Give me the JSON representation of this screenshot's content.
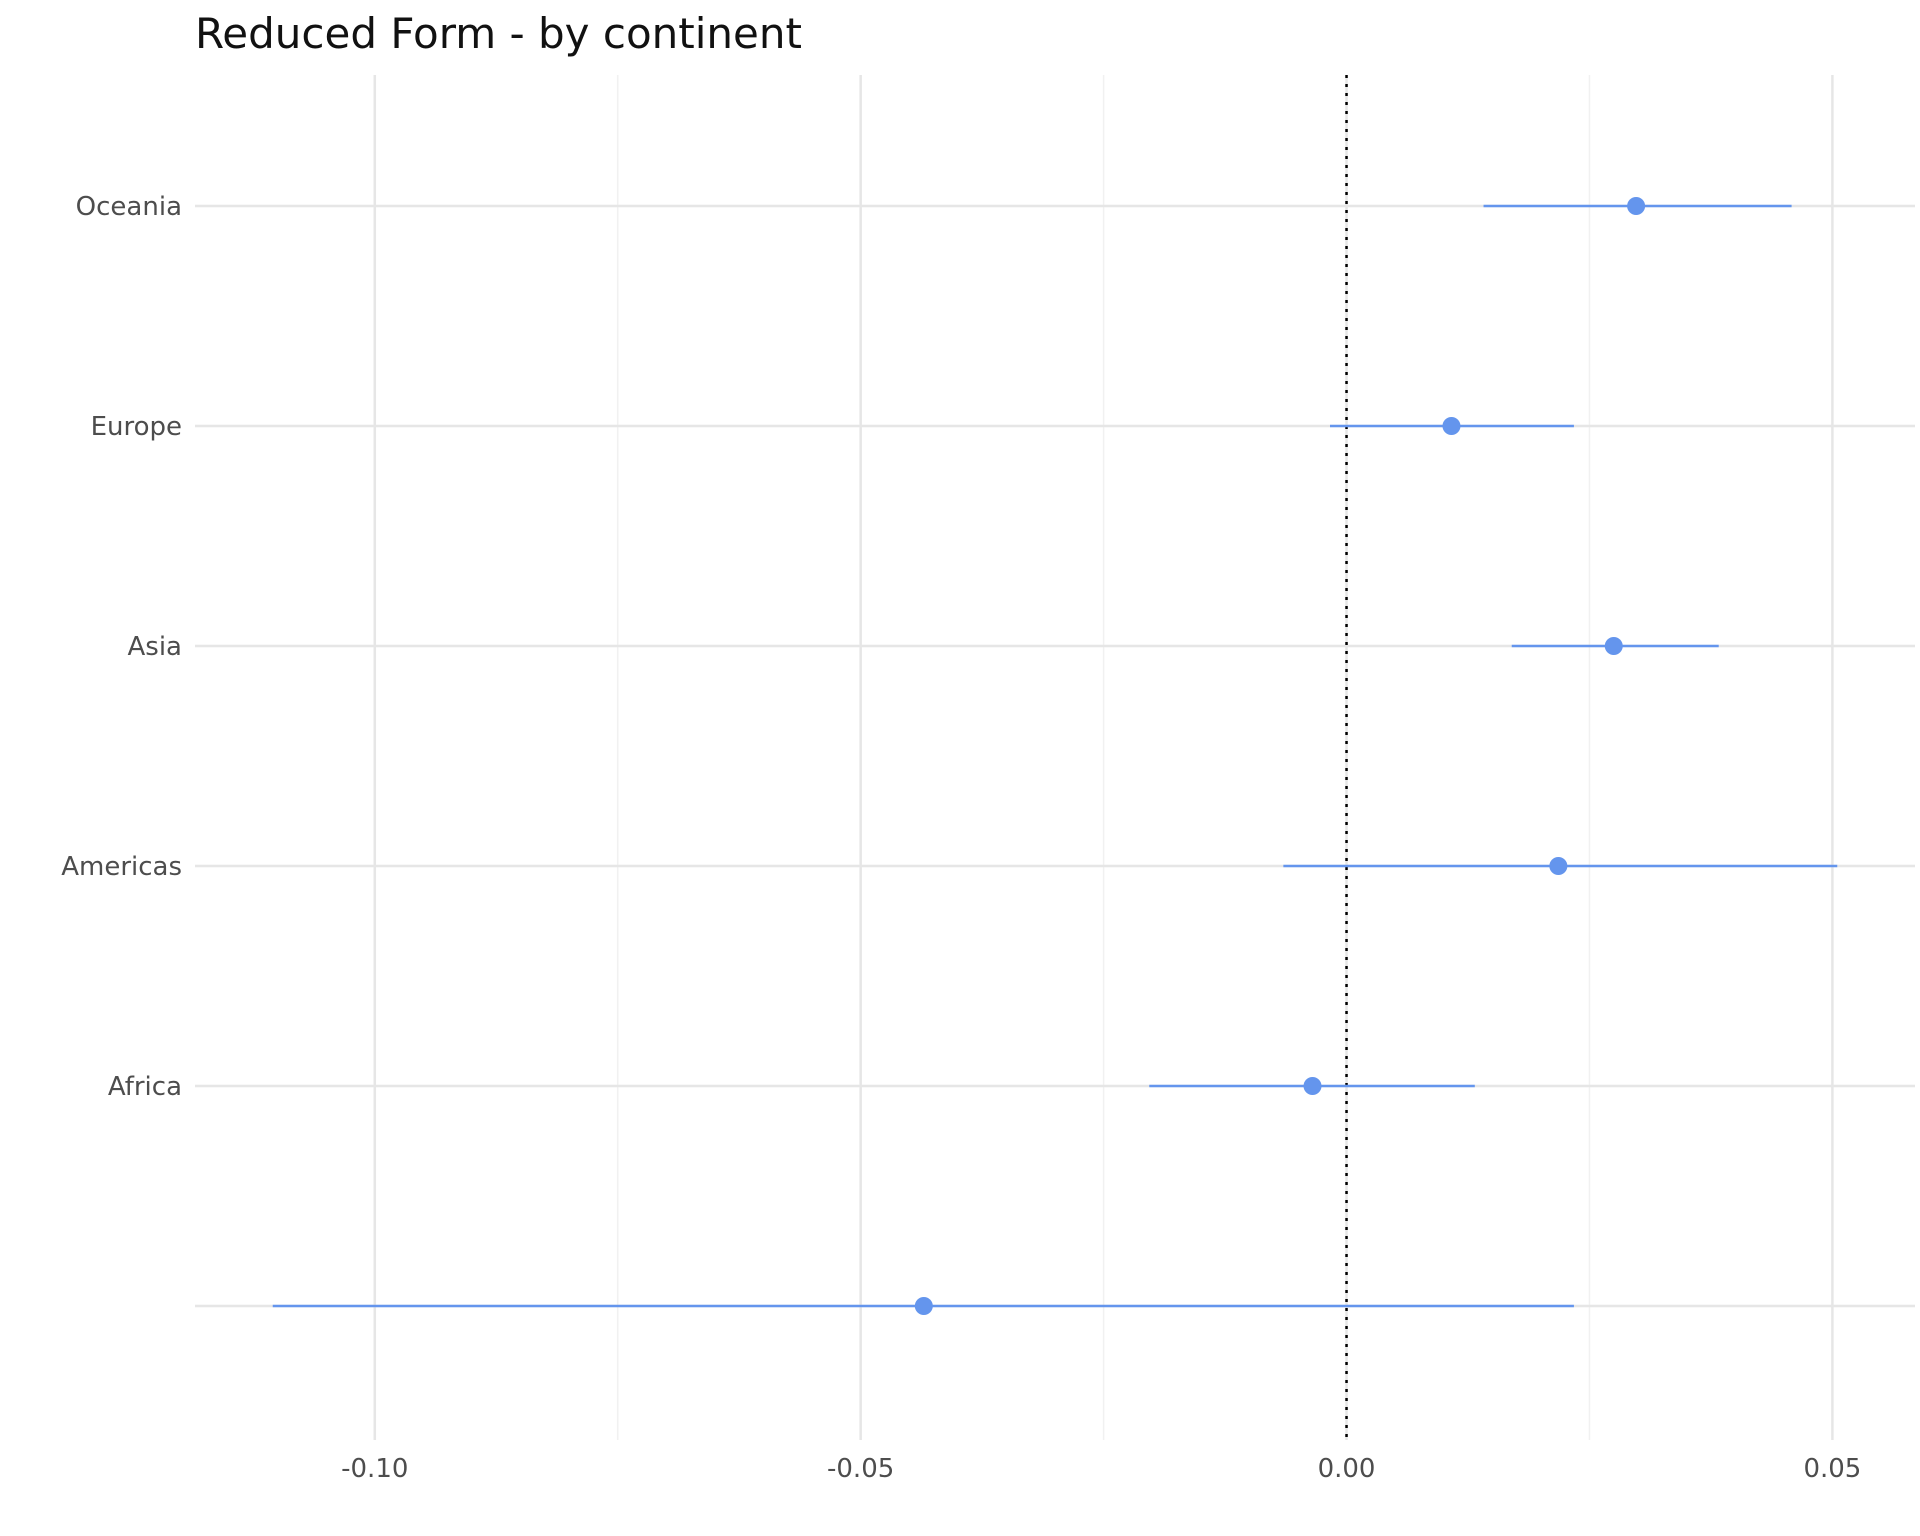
{
  "chart_data": {
    "type": "scatter",
    "title": "Reduced Form - by continent",
    "xlabel": "",
    "ylabel": "",
    "xlim": [
      -0.1185,
      0.0585
    ],
    "x_ticks": [
      -0.1,
      -0.05,
      0.0,
      0.05
    ],
    "x_tick_labels": [
      "-0.10",
      "-0.05",
      "0.00",
      "0.05"
    ],
    "categories": [
      "",
      "Africa",
      "Americas",
      "Asia",
      "Europe",
      "Oceania"
    ],
    "series": [
      {
        "estimates": [
          -0.0435,
          -0.0035,
          0.0218,
          0.0275,
          0.0108,
          0.0298
        ],
        "ci_low": [
          -0.1105,
          -0.0203,
          -0.0065,
          0.017,
          -0.0017,
          0.0141
        ],
        "ci_high": [
          0.0234,
          0.0132,
          0.0505,
          0.0383,
          0.0234,
          0.0458
        ]
      }
    ],
    "reference_line": {
      "x": 0,
      "style": "dotted",
      "color": "#000000"
    },
    "point_color": "#6495ED",
    "grid": true,
    "legend": "none"
  }
}
